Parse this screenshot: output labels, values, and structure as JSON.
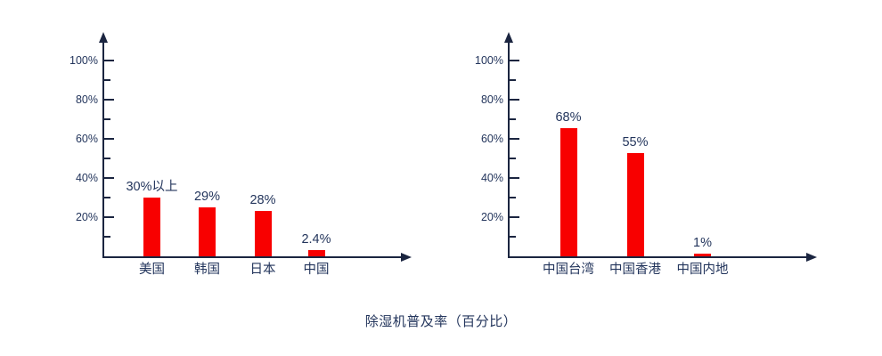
{
  "page": {
    "title": "除湿机普及率（百分比）"
  },
  "colors": {
    "bar": "#f80000",
    "axis": "#1b2540",
    "text": "#23355c"
  },
  "chart_data": [
    {
      "type": "bar",
      "name": "international-penetration",
      "title": "",
      "xlabel": "",
      "ylabel": "",
      "categories": [
        "美国",
        "韩国",
        "日本",
        "中国"
      ],
      "values": [
        30,
        29,
        28,
        2.4
      ],
      "value_labels": [
        "30%以上",
        "29%",
        "28%",
        "2.4%"
      ],
      "bar_display_pct": [
        30,
        25,
        23,
        3
      ],
      "ylim": [
        0,
        110
      ],
      "yticks_major": [
        20,
        40,
        60,
        80,
        100
      ],
      "yticks_minor": [
        10,
        30,
        50,
        70,
        90
      ],
      "ytick_suffix": "%",
      "grid": false,
      "legend": false
    },
    {
      "type": "bar",
      "name": "greater-china-penetration",
      "title": "",
      "xlabel": "",
      "ylabel": "",
      "categories": [
        "中国台湾",
        "中国香港",
        "中国内地"
      ],
      "values": [
        68,
        55,
        1
      ],
      "value_labels": [
        "68%",
        "55%",
        "1%"
      ],
      "bar_display_pct": [
        65.5,
        52.5,
        1.4
      ],
      "ylim": [
        0,
        110
      ],
      "yticks_major": [
        20,
        40,
        60,
        80,
        100
      ],
      "yticks_minor": [
        10,
        30,
        50,
        70,
        90
      ],
      "ytick_suffix": "%",
      "grid": false,
      "legend": false
    }
  ]
}
